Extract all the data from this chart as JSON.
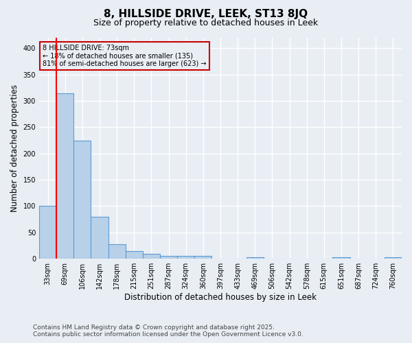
{
  "title": "8, HILLSIDE DRIVE, LEEK, ST13 8JQ",
  "subtitle": "Size of property relative to detached houses in Leek",
  "xlabel": "Distribution of detached houses by size in Leek",
  "ylabel": "Number of detached properties",
  "categories": [
    "33sqm",
    "69sqm",
    "106sqm",
    "142sqm",
    "178sqm",
    "215sqm",
    "251sqm",
    "287sqm",
    "324sqm",
    "360sqm",
    "397sqm",
    "433sqm",
    "469sqm",
    "506sqm",
    "542sqm",
    "578sqm",
    "615sqm",
    "651sqm",
    "687sqm",
    "724sqm",
    "760sqm"
  ],
  "values": [
    100,
    315,
    225,
    80,
    28,
    15,
    10,
    5,
    5,
    5,
    0,
    0,
    3,
    0,
    0,
    0,
    0,
    3,
    0,
    0,
    3
  ],
  "bar_color": "#b8d0e8",
  "bar_edge_color": "#5b9bd5",
  "background_color": "#e8eef4",
  "grid_color": "#d0d8e4",
  "annotation_box_text": "8 HILLSIDE DRIVE: 73sqm\n← 18% of detached houses are smaller (135)\n81% of semi-detached houses are larger (623) →",
  "annotation_box_color": "#cc0000",
  "red_line_x": 0.5,
  "ylim": [
    0,
    420
  ],
  "yticks": [
    0,
    50,
    100,
    150,
    200,
    250,
    300,
    350,
    400
  ],
  "footer_line1": "Contains HM Land Registry data © Crown copyright and database right 2025.",
  "footer_line2": "Contains public sector information licensed under the Open Government Licence v3.0.",
  "title_fontsize": 11,
  "subtitle_fontsize": 9,
  "axis_label_fontsize": 8.5,
  "tick_fontsize": 7,
  "annotation_fontsize": 7,
  "footer_fontsize": 6.5
}
